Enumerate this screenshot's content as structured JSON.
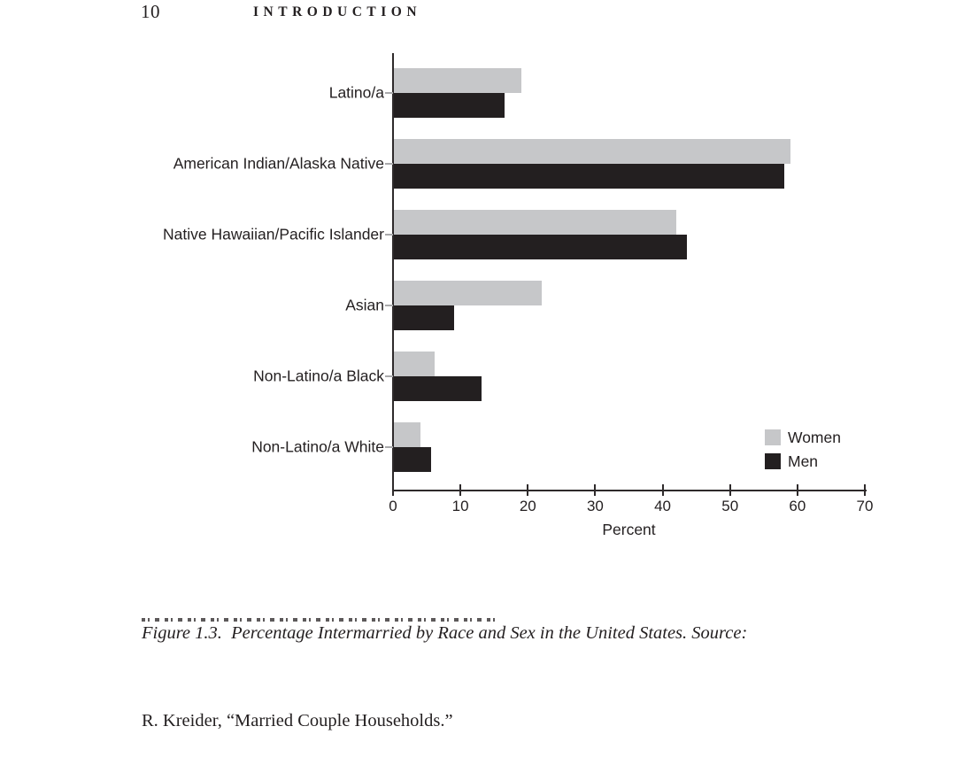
{
  "page": {
    "number": "10",
    "running_head": "INTRODUCTION"
  },
  "chart_data": {
    "type": "bar",
    "orientation": "horizontal",
    "title": "",
    "categories": [
      "Latino/a",
      "American Indian/Alaska Native",
      "Native Hawaiian/Pacific Islander",
      "Asian",
      "Non-Latino/a Black",
      "Non-Latino/a White"
    ],
    "series": [
      {
        "name": "Women",
        "color": "#c6c7c9",
        "values": [
          19,
          59,
          42,
          22,
          6,
          4
        ]
      },
      {
        "name": "Men",
        "color": "#231f20",
        "values": [
          16.5,
          58,
          43.5,
          9,
          13,
          5.5
        ]
      }
    ],
    "xlabel": "Percent",
    "ylabel": "",
    "xlim": [
      0,
      70
    ],
    "xticks": [
      0,
      10,
      20,
      30,
      40,
      50,
      60,
      70
    ],
    "grid": false,
    "legend_position": "lower right"
  },
  "caption": {
    "line1": "Figure 1.3.  Percentage Intermarried by Race and Sex in the United States. Source:",
    "line2": "R. Kreider, “Married Couple Households.”"
  }
}
